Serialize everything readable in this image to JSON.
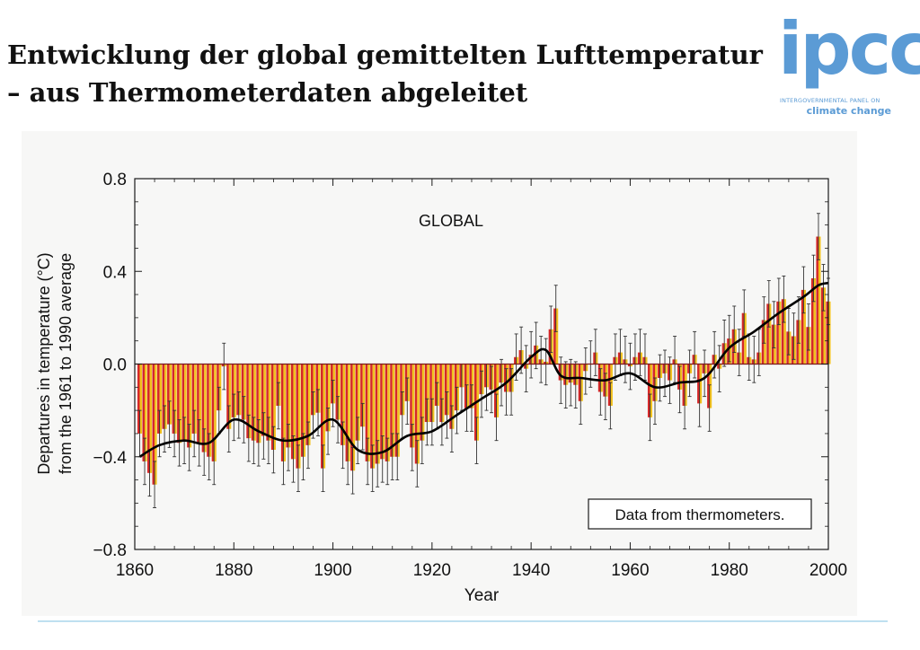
{
  "slide": {
    "title_line1": "Entwicklung der global gemittelten Lufttemperatur",
    "title_line2": "–  aus Thermometerdaten abgeleitet"
  },
  "logo": {
    "word": "ipcc",
    "line1": "INTERGOVERNMENTAL PANEL ON",
    "line2": "climate change",
    "color": "#5b9bd5"
  },
  "chart_data": {
    "type": "bar",
    "title": "GLOBAL",
    "annotation": "Data from thermometers.",
    "xlabel": "Year",
    "ylabel_line1": "Departures in temperature (°C)",
    "ylabel_line2": "from the 1961 to 1990 average",
    "xlim": [
      1860,
      2000
    ],
    "ylim": [
      -0.8,
      0.8
    ],
    "x_ticks": [
      "1860",
      "1880",
      "1900",
      "1920",
      "1940",
      "1960",
      "1980",
      "2000"
    ],
    "y_ticks": [
      "0.8",
      "0.4",
      "0.0",
      "−0.4",
      "−0.8"
    ],
    "grid": false,
    "bar_colors": [
      "#d62828",
      "#f2c11d"
    ],
    "line_color": "#000000",
    "series": [
      {
        "kind": "annual_bars",
        "x": [
          1861,
          1862,
          1863,
          1864,
          1865,
          1866,
          1867,
          1868,
          1869,
          1870,
          1871,
          1872,
          1873,
          1874,
          1875,
          1876,
          1877,
          1878,
          1879,
          1880,
          1881,
          1882,
          1883,
          1884,
          1885,
          1886,
          1887,
          1888,
          1889,
          1890,
          1891,
          1892,
          1893,
          1894,
          1895,
          1896,
          1897,
          1898,
          1899,
          1900,
          1901,
          1902,
          1903,
          1904,
          1905,
          1906,
          1907,
          1908,
          1909,
          1910,
          1911,
          1912,
          1913,
          1914,
          1915,
          1916,
          1917,
          1918,
          1919,
          1920,
          1921,
          1922,
          1923,
          1924,
          1925,
          1926,
          1927,
          1928,
          1929,
          1930,
          1931,
          1932,
          1933,
          1934,
          1935,
          1936,
          1937,
          1938,
          1939,
          1940,
          1941,
          1942,
          1943,
          1944,
          1945,
          1946,
          1947,
          1948,
          1949,
          1950,
          1951,
          1952,
          1953,
          1954,
          1955,
          1956,
          1957,
          1958,
          1959,
          1960,
          1961,
          1962,
          1963,
          1964,
          1965,
          1966,
          1967,
          1968,
          1969,
          1970,
          1971,
          1972,
          1973,
          1974,
          1975,
          1976,
          1977,
          1978,
          1979,
          1980,
          1981,
          1982,
          1983,
          1984,
          1985,
          1986,
          1987,
          1988,
          1989,
          1990,
          1991,
          1992,
          1993,
          1994,
          1995,
          1996,
          1997,
          1998,
          1999,
          2000
        ],
        "values": [
          -0.3,
          -0.42,
          -0.47,
          -0.52,
          -0.3,
          -0.28,
          -0.26,
          -0.3,
          -0.34,
          -0.33,
          -0.36,
          -0.3,
          -0.34,
          -0.38,
          -0.4,
          -0.42,
          -0.2,
          -0.01,
          -0.28,
          -0.23,
          -0.22,
          -0.24,
          -0.32,
          -0.33,
          -0.34,
          -0.31,
          -0.33,
          -0.37,
          -0.18,
          -0.42,
          -0.36,
          -0.41,
          -0.45,
          -0.4,
          -0.35,
          -0.22,
          -0.21,
          -0.45,
          -0.29,
          -0.17,
          -0.24,
          -0.35,
          -0.42,
          -0.46,
          -0.33,
          -0.27,
          -0.42,
          -0.45,
          -0.43,
          -0.41,
          -0.42,
          -0.4,
          -0.4,
          -0.22,
          -0.16,
          -0.36,
          -0.43,
          -0.33,
          -0.25,
          -0.25,
          -0.18,
          -0.25,
          -0.22,
          -0.28,
          -0.2,
          -0.1,
          -0.19,
          -0.19,
          -0.33,
          -0.13,
          -0.1,
          -0.11,
          -0.23,
          -0.08,
          -0.12,
          -0.12,
          0.03,
          0.06,
          -0.02,
          0.04,
          0.08,
          0.02,
          0.01,
          0.15,
          0.24,
          -0.07,
          -0.09,
          -0.08,
          -0.09,
          -0.16,
          -0.03,
          0.0,
          0.05,
          -0.12,
          -0.14,
          -0.18,
          0.03,
          0.05,
          0.02,
          -0.01,
          0.03,
          0.05,
          0.03,
          -0.23,
          -0.16,
          -0.06,
          -0.04,
          -0.07,
          0.02,
          -0.11,
          -0.18,
          -0.04,
          0.04,
          -0.17,
          -0.04,
          -0.19,
          0.04,
          -0.02,
          0.09,
          0.11,
          0.15,
          0.05,
          0.22,
          0.03,
          0.02,
          0.05,
          0.19,
          0.26,
          0.17,
          0.27,
          0.28,
          0.14,
          0.12,
          0.19,
          0.32,
          0.16,
          0.37,
          0.55,
          0.33,
          0.27
        ],
        "uncertainty": 0.1
      },
      {
        "kind": "smoothed_line",
        "x": [
          1861,
          1865,
          1870,
          1875,
          1880,
          1885,
          1890,
          1895,
          1900,
          1905,
          1910,
          1915,
          1920,
          1925,
          1930,
          1935,
          1940,
          1943,
          1946,
          1950,
          1955,
          1960,
          1965,
          1970,
          1975,
          1980,
          1985,
          1990,
          1995,
          1998,
          2000
        ],
        "values": [
          -0.4,
          -0.35,
          -0.33,
          -0.34,
          -0.24,
          -0.29,
          -0.33,
          -0.31,
          -0.24,
          -0.37,
          -0.38,
          -0.31,
          -0.29,
          -0.22,
          -0.15,
          -0.08,
          0.03,
          0.06,
          -0.05,
          -0.06,
          -0.07,
          -0.04,
          -0.1,
          -0.08,
          -0.06,
          0.07,
          0.14,
          0.22,
          0.29,
          0.34,
          0.35
        ]
      }
    ]
  }
}
